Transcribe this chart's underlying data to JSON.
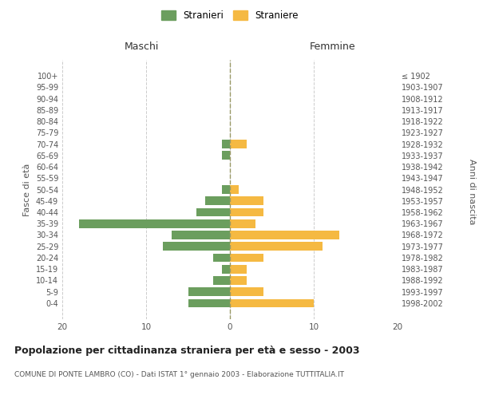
{
  "age_groups": [
    "0-4",
    "5-9",
    "10-14",
    "15-19",
    "20-24",
    "25-29",
    "30-34",
    "35-39",
    "40-44",
    "45-49",
    "50-54",
    "55-59",
    "60-64",
    "65-69",
    "70-74",
    "75-79",
    "80-84",
    "85-89",
    "90-94",
    "95-99",
    "100+"
  ],
  "birth_years": [
    "1998-2002",
    "1993-1997",
    "1988-1992",
    "1983-1987",
    "1978-1982",
    "1973-1977",
    "1968-1972",
    "1963-1967",
    "1958-1962",
    "1953-1957",
    "1948-1952",
    "1943-1947",
    "1938-1942",
    "1933-1937",
    "1928-1932",
    "1923-1927",
    "1918-1922",
    "1913-1917",
    "1908-1912",
    "1903-1907",
    "≤ 1902"
  ],
  "maschi": [
    5,
    5,
    2,
    1,
    2,
    8,
    7,
    18,
    4,
    3,
    1,
    0,
    0,
    1,
    1,
    0,
    0,
    0,
    0,
    0,
    0
  ],
  "femmine": [
    10,
    4,
    2,
    2,
    4,
    11,
    13,
    3,
    4,
    4,
    1,
    0,
    0,
    0,
    2,
    0,
    0,
    0,
    0,
    0,
    0
  ],
  "color_maschi": "#6b9e5e",
  "color_femmine": "#f5b942",
  "title": "Popolazione per cittadinanza straniera per età e sesso - 2003",
  "subtitle": "COMUNE DI PONTE LAMBRO (CO) - Dati ISTAT 1° gennaio 2003 - Elaborazione TUTTITALIA.IT",
  "ylabel_left": "Fasce di età",
  "ylabel_right": "Anni di nascita",
  "xlabel_left": "Maschi",
  "xlabel_right": "Femmine",
  "xlim": 20,
  "legend_maschi": "Stranieri",
  "legend_femmine": "Straniere",
  "background_color": "#ffffff",
  "grid_color": "#cccccc"
}
